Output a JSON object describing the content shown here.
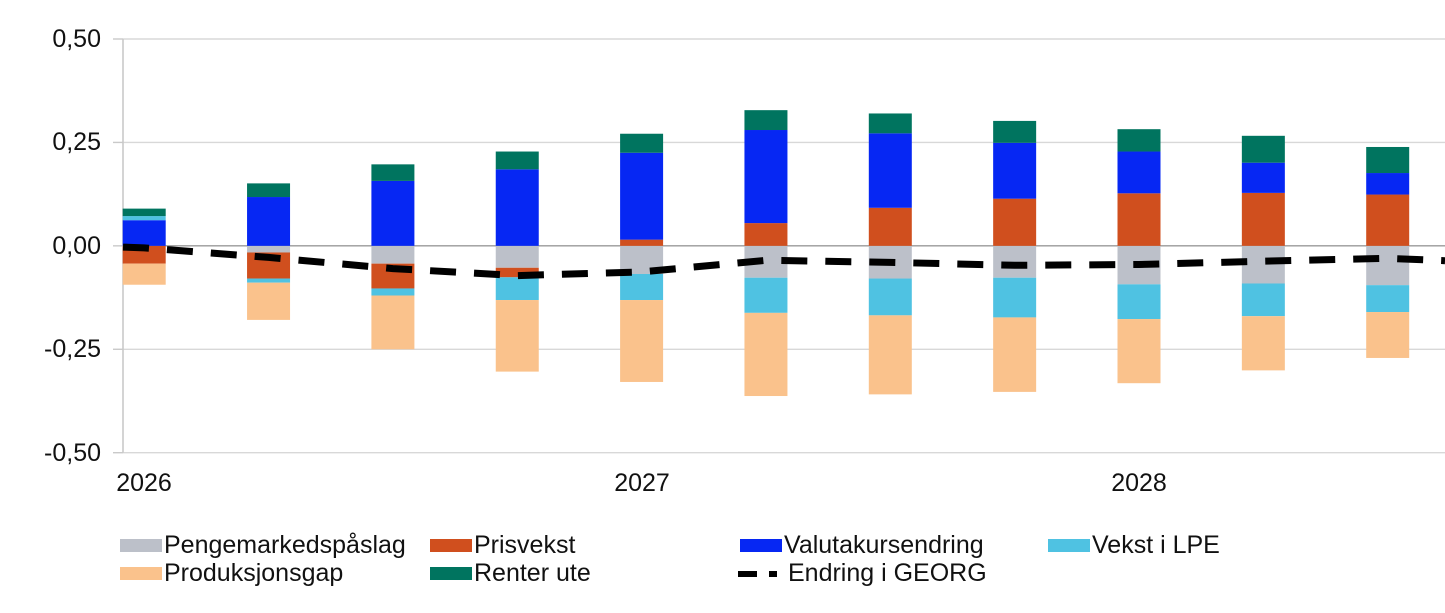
{
  "chart_data": {
    "type": "bar",
    "stacked": true,
    "bar_count": 11,
    "grid": "horizontal",
    "legend_position": "bottom",
    "ylim": [
      -0.5,
      0.5
    ],
    "y_ticks": [
      {
        "label": "0,50",
        "value": 0.5
      },
      {
        "label": "0,25",
        "value": 0.25
      },
      {
        "label": "0,00",
        "value": 0.0
      },
      {
        "label": "-0,25",
        "value": -0.25
      },
      {
        "label": "-0,50",
        "value": -0.5
      }
    ],
    "x_axis_labels": [
      {
        "label": "2026",
        "bar_index": 0
      },
      {
        "label": "2027",
        "bar_index": 4
      },
      {
        "label": "2028",
        "bar_index": 8
      }
    ],
    "series": [
      {
        "name": "Pengemarkedspåslag",
        "color": "#bcc0c9",
        "values": [
          0.0,
          -0.016,
          -0.043,
          -0.053,
          -0.068,
          -0.077,
          -0.079,
          -0.077,
          -0.093,
          -0.091,
          -0.095
        ]
      },
      {
        "name": "Prisvekst",
        "color": "#d04f1e",
        "values": [
          -0.043,
          -0.063,
          -0.06,
          -0.023,
          0.015,
          0.055,
          0.092,
          0.114,
          0.127,
          0.128,
          0.124
        ]
      },
      {
        "name": "Valutakursendring",
        "color": "#0627f3",
        "values": [
          0.062,
          0.118,
          0.157,
          0.185,
          0.21,
          0.225,
          0.18,
          0.135,
          0.101,
          0.073,
          0.052
        ]
      },
      {
        "name": "Vekst i LPE",
        "color": "#4fc2e2",
        "values": [
          0.01,
          -0.01,
          -0.017,
          -0.055,
          -0.063,
          -0.085,
          -0.089,
          -0.096,
          -0.084,
          -0.079,
          -0.065
        ]
      },
      {
        "name": "Produksjonsgap",
        "color": "#fac28c",
        "values": [
          -0.051,
          -0.09,
          -0.13,
          -0.173,
          -0.198,
          -0.201,
          -0.191,
          -0.18,
          -0.155,
          -0.131,
          -0.111
        ]
      },
      {
        "name": "Renter ute",
        "color": "#00745f",
        "values": [
          0.018,
          0.033,
          0.04,
          0.043,
          0.046,
          0.048,
          0.048,
          0.053,
          0.054,
          0.065,
          0.063
        ]
      }
    ],
    "line_series": {
      "name": "Endring i GEORG",
      "color": "#000000",
      "style": "dashed",
      "values": [
        -0.005,
        -0.028,
        -0.055,
        -0.072,
        -0.063,
        -0.035,
        -0.04,
        -0.047,
        -0.045,
        -0.037,
        -0.03
      ],
      "edge_start": -0.003,
      "edge_end": -0.036
    }
  }
}
